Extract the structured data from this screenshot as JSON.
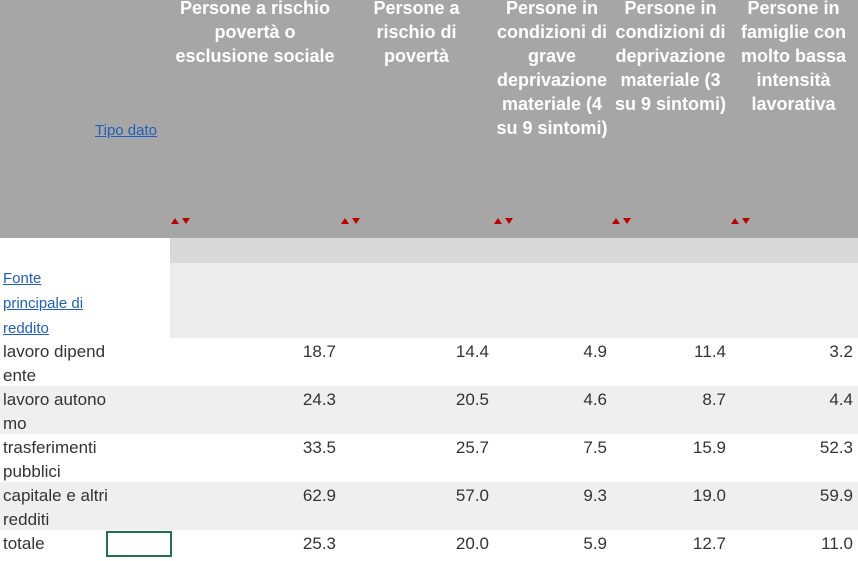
{
  "header": {
    "corner_link": "Tipo dato",
    "columns": [
      "Persone a rischio povertà o esclusione sociale",
      "Persone a rischio di povertà",
      "Persone in condizioni di grave deprivazione materiale (4 su 9 sintomi)",
      "Persone in condizioni di deprivazione materiale (3 su 9 sintomi)",
      "Persone in famiglie con molto bassa intensità lavorativa"
    ]
  },
  "row_group_link": "Fonte principale di reddito",
  "rows": [
    {
      "label": "lavoro dipendente",
      "values": [
        "18.7",
        "14.4",
        "4.9",
        "11.4",
        "3.2"
      ]
    },
    {
      "label": "lavoro autonomo",
      "values": [
        "24.3",
        "20.5",
        "4.6",
        "8.7",
        "4.4"
      ]
    },
    {
      "label": "trasferimenti pubblici",
      "values": [
        "33.5",
        "25.7",
        "7.5",
        "15.9",
        "52.3"
      ]
    },
    {
      "label": "capitale e altri redditi",
      "values": [
        "62.9",
        "57.0",
        "9.3",
        "19.0",
        "59.9"
      ]
    },
    {
      "label": "totale",
      "values": [
        "25.3",
        "20.0",
        "5.9",
        "12.7",
        "11.0"
      ]
    }
  ]
}
